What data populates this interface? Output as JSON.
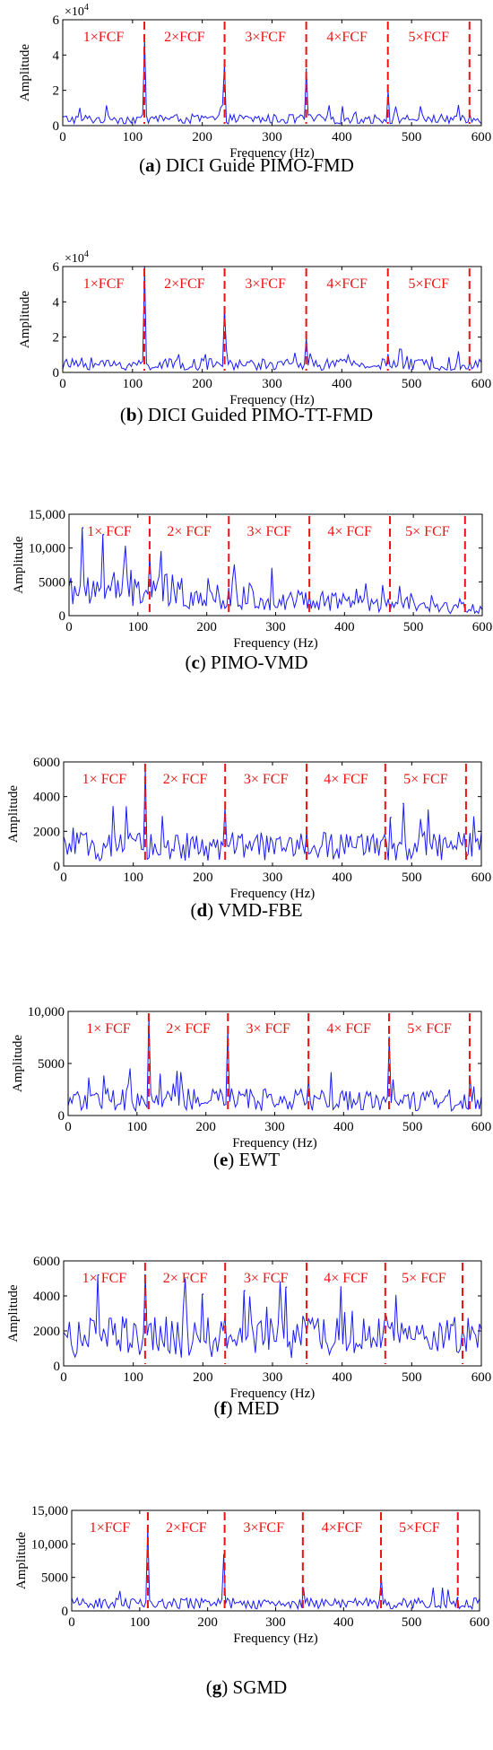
{
  "figure": {
    "panels": [
      {
        "caption_letter": "a",
        "caption_text": "DICI Guide PIMO-FMD"
      },
      {
        "caption_letter": "b",
        "caption_text": "DICI Guided PIMO-TT-FMD"
      },
      {
        "caption_letter": "c",
        "caption_text": "PIMO-VMD"
      },
      {
        "caption_letter": "d",
        "caption_text": "VMD-FBE"
      },
      {
        "caption_letter": "e",
        "caption_text": "EWT"
      },
      {
        "caption_letter": "f",
        "caption_text": "MED"
      },
      {
        "caption_letter": "g",
        "caption_text": "SGMD"
      }
    ]
  },
  "colors": {
    "signal": "#1a1aff",
    "fcf_marker": "#ee1111",
    "axis": "#000000"
  },
  "chart_data": [
    {
      "type": "line",
      "xlabel": "Frequency (Hz)",
      "ylabel": "Amplitude",
      "xlim": [
        0,
        600
      ],
      "ylim": [
        0,
        60000
      ],
      "xticks": [
        "0",
        "100",
        "200",
        "300",
        "400",
        "500",
        "600"
      ],
      "yticks": [
        "0",
        "2",
        "4",
        "6"
      ],
      "y_multiplier_label": "×10",
      "y_multiplier_exp": "4",
      "fcf_lines": [
        117,
        232,
        349,
        466,
        583
      ],
      "fcf_labels": [
        "1×FCF",
        "2×FCF",
        "3×FCF",
        "4×FCF",
        "5×FCF"
      ],
      "peaks": [
        [
          117,
          50000
        ],
        [
          232,
          35000
        ],
        [
          349,
          32000
        ],
        [
          466,
          20000
        ],
        [
          583,
          6000
        ]
      ],
      "baseline": 5000
    },
    {
      "type": "line",
      "xlabel": "Frequency (Hz)",
      "ylabel": "Amplitude",
      "xlim": [
        0,
        600
      ],
      "ylim": [
        0,
        60000
      ],
      "xticks": [
        "0",
        "100",
        "200",
        "300",
        "400",
        "500",
        "600"
      ],
      "yticks": [
        "0",
        "2",
        "4",
        "6"
      ],
      "y_multiplier_label": "×10",
      "y_multiplier_exp": "4",
      "fcf_lines": [
        117,
        232,
        349,
        466,
        583
      ],
      "fcf_labels": [
        "1×FCF",
        "2×FCF",
        "3×FCF",
        "4×FCF",
        "5×FCF"
      ],
      "peaks": [
        [
          117,
          60000
        ],
        [
          232,
          37000
        ],
        [
          349,
          20000
        ],
        [
          466,
          10000
        ],
        [
          583,
          6000
        ]
      ],
      "baseline": 6000
    },
    {
      "type": "line",
      "xlabel": "Frequency (Hz)",
      "ylabel": "Amplitude",
      "xlim": [
        0,
        600
      ],
      "ylim": [
        0,
        15000
      ],
      "xticks": [
        "0",
        "100",
        "200",
        "300",
        "400",
        "500",
        "600"
      ],
      "yticks": [
        "0",
        "5000",
        "10,000",
        "15,000"
      ],
      "fcf_lines": [
        117,
        232,
        349,
        466,
        575
      ],
      "fcf_labels": [
        "1× FCF",
        "2× FCF",
        "3× FCF",
        "4× FCF",
        "5× FCF"
      ],
      "peaks": [
        [
          20,
          13000
        ],
        [
          50,
          12000
        ],
        [
          117,
          9000
        ],
        [
          232,
          4000
        ],
        [
          349,
          3000
        ]
      ],
      "baseline": 6000
    },
    {
      "type": "line",
      "xlabel": "Frequency (Hz)",
      "ylabel": "Amplitude",
      "xlim": [
        0,
        600
      ],
      "ylim": [
        0,
        6000
      ],
      "xticks": [
        "0",
        "100",
        "200",
        "300",
        "400",
        "500",
        "600"
      ],
      "yticks": [
        "0",
        "2000",
        "4000",
        "6000"
      ],
      "fcf_lines": [
        117,
        232,
        349,
        462,
        578
      ],
      "fcf_labels": [
        "1× FCF",
        "2× FCF",
        "3× FCF",
        "4× FCF",
        "5× FCF"
      ],
      "peaks": [
        [
          117,
          5600
        ],
        [
          232,
          3400
        ],
        [
          349,
          2000
        ],
        [
          470,
          2800
        ],
        [
          488,
          3600
        ]
      ],
      "baseline": 1500
    },
    {
      "type": "line",
      "xlabel": "Frequency (Hz)",
      "ylabel": "Amplitude",
      "xlim": [
        0,
        600
      ],
      "ylim": [
        0,
        10000
      ],
      "xticks": [
        "0",
        "100",
        "200",
        "300",
        "400",
        "500",
        "600"
      ],
      "yticks": [
        "0",
        "5000",
        "10,000"
      ],
      "fcf_lines": [
        117,
        232,
        349,
        466,
        583
      ],
      "fcf_labels": [
        "1× FCF",
        "2× FCF",
        "3× FCF",
        "4× FCF",
        "5× FCF"
      ],
      "peaks": [
        [
          117,
          9500
        ],
        [
          232,
          8500
        ],
        [
          349,
          3500
        ],
        [
          466,
          7500
        ],
        [
          583,
          3800
        ]
      ],
      "baseline": 2000
    },
    {
      "type": "line",
      "xlabel": "Frequency (Hz)",
      "ylabel": "Amplitude",
      "xlim": [
        0,
        600
      ],
      "ylim": [
        0,
        6000
      ],
      "xticks": [
        "0",
        "100",
        "200",
        "300",
        "400",
        "500",
        "600"
      ],
      "yticks": [
        "0",
        "2000",
        "4000",
        "6000"
      ],
      "fcf_lines": [
        117,
        232,
        349,
        462,
        573
      ],
      "fcf_labels": [
        "1× FCF",
        "2× FCF",
        "3× FCF",
        "4× FCF",
        "5× FCF"
      ],
      "peaks": [
        [
          50,
          5200
        ],
        [
          117,
          5200
        ],
        [
          200,
          4100
        ],
        [
          260,
          4300
        ],
        [
          320,
          4500
        ]
      ],
      "baseline": 2200
    },
    {
      "type": "line",
      "xlabel": "Frequency (Hz)",
      "ylabel": "Amplitude",
      "xlim": [
        0,
        600
      ],
      "ylim": [
        0,
        15000
      ],
      "xticks": [
        "0",
        "100",
        "200",
        "300",
        "400",
        "500",
        "600"
      ],
      "yticks": [
        "0",
        "5000",
        "10,000",
        "15,000"
      ],
      "fcf_lines": [
        112,
        225,
        340,
        455,
        568
      ],
      "fcf_labels": [
        "1×FCF",
        "2×FCF",
        "3×FCF",
        "4×FCF",
        "5×FCF"
      ],
      "peaks": [
        [
          112,
          12500
        ],
        [
          225,
          8500
        ],
        [
          340,
          3500
        ],
        [
          455,
          5000
        ],
        [
          568,
          2000
        ]
      ],
      "baseline": 1500
    }
  ]
}
